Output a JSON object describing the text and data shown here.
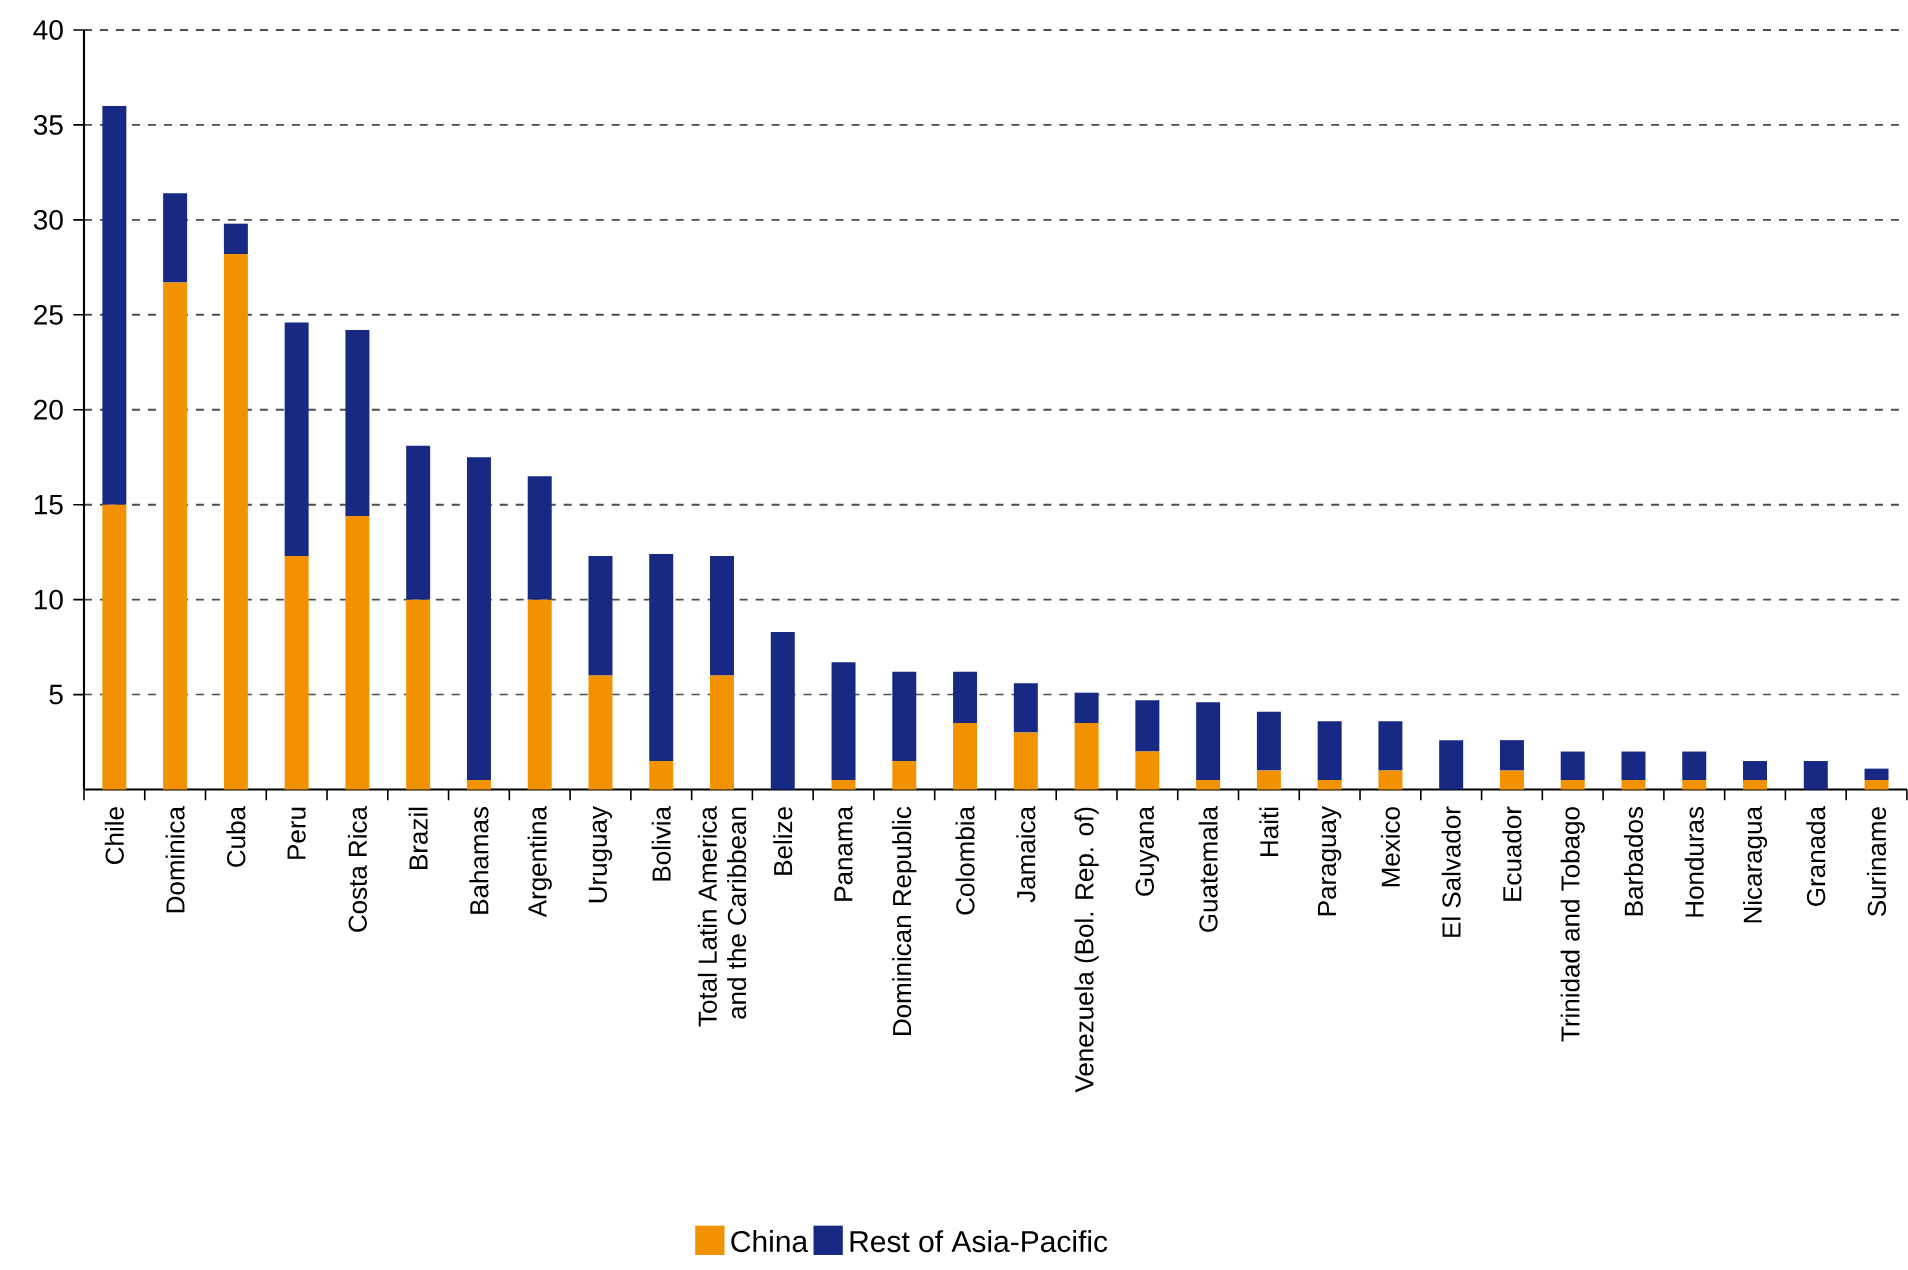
{
  "chart_data": {
    "type": "bar",
    "stacked": true,
    "grid": "y",
    "legend": "bottom",
    "categories": [
      "Chile",
      "Dominica",
      "Cuba",
      "Peru",
      "Costa Rica",
      "Brazil",
      "Bahamas",
      "Argentina",
      "Uruguay",
      "Bolivia",
      "Total Latin America and the Caribbean",
      "Belize",
      "Panama",
      "Dominican Republic",
      "Colombia",
      "Jamaica",
      "Venezuela (Bol. Rep. of)",
      "Guyana",
      "Guatemala",
      "Haiti",
      "Paraguay",
      "Mexico",
      "El Salvador",
      "Ecuador",
      "Trinidad and Tobago",
      "Barbados",
      "Honduras",
      "Nicaragua",
      "Granada",
      "Suriname"
    ],
    "series": [
      {
        "name": "China",
        "color": "#f39200",
        "values": [
          15.0,
          26.7,
          28.2,
          12.3,
          14.4,
          10.0,
          0.5,
          10.0,
          6.0,
          1.5,
          6.0,
          0,
          0.5,
          1.5,
          3.5,
          3.0,
          3.5,
          2.0,
          0.5,
          1.0,
          0.5,
          1.0,
          0,
          1.0,
          0.5,
          0.5,
          0.5,
          0.5,
          0,
          0.5
        ]
      },
      {
        "name": "Rest of Asia-Pacific",
        "color": "#172983",
        "values": [
          21.0,
          4.7,
          1.6,
          12.3,
          9.8,
          8.1,
          17.0,
          6.5,
          6.3,
          10.9,
          6.3,
          8.3,
          6.2,
          4.7,
          2.7,
          2.6,
          1.6,
          2.7,
          4.1,
          3.1,
          3.1,
          2.6,
          2.6,
          1.6,
          1.5,
          1.5,
          1.5,
          1.0,
          1.5,
          0.6
        ]
      }
    ],
    "ylim": [
      0,
      40
    ],
    "yticks": [
      5,
      10,
      15,
      20,
      25,
      30,
      35,
      40
    ]
  }
}
